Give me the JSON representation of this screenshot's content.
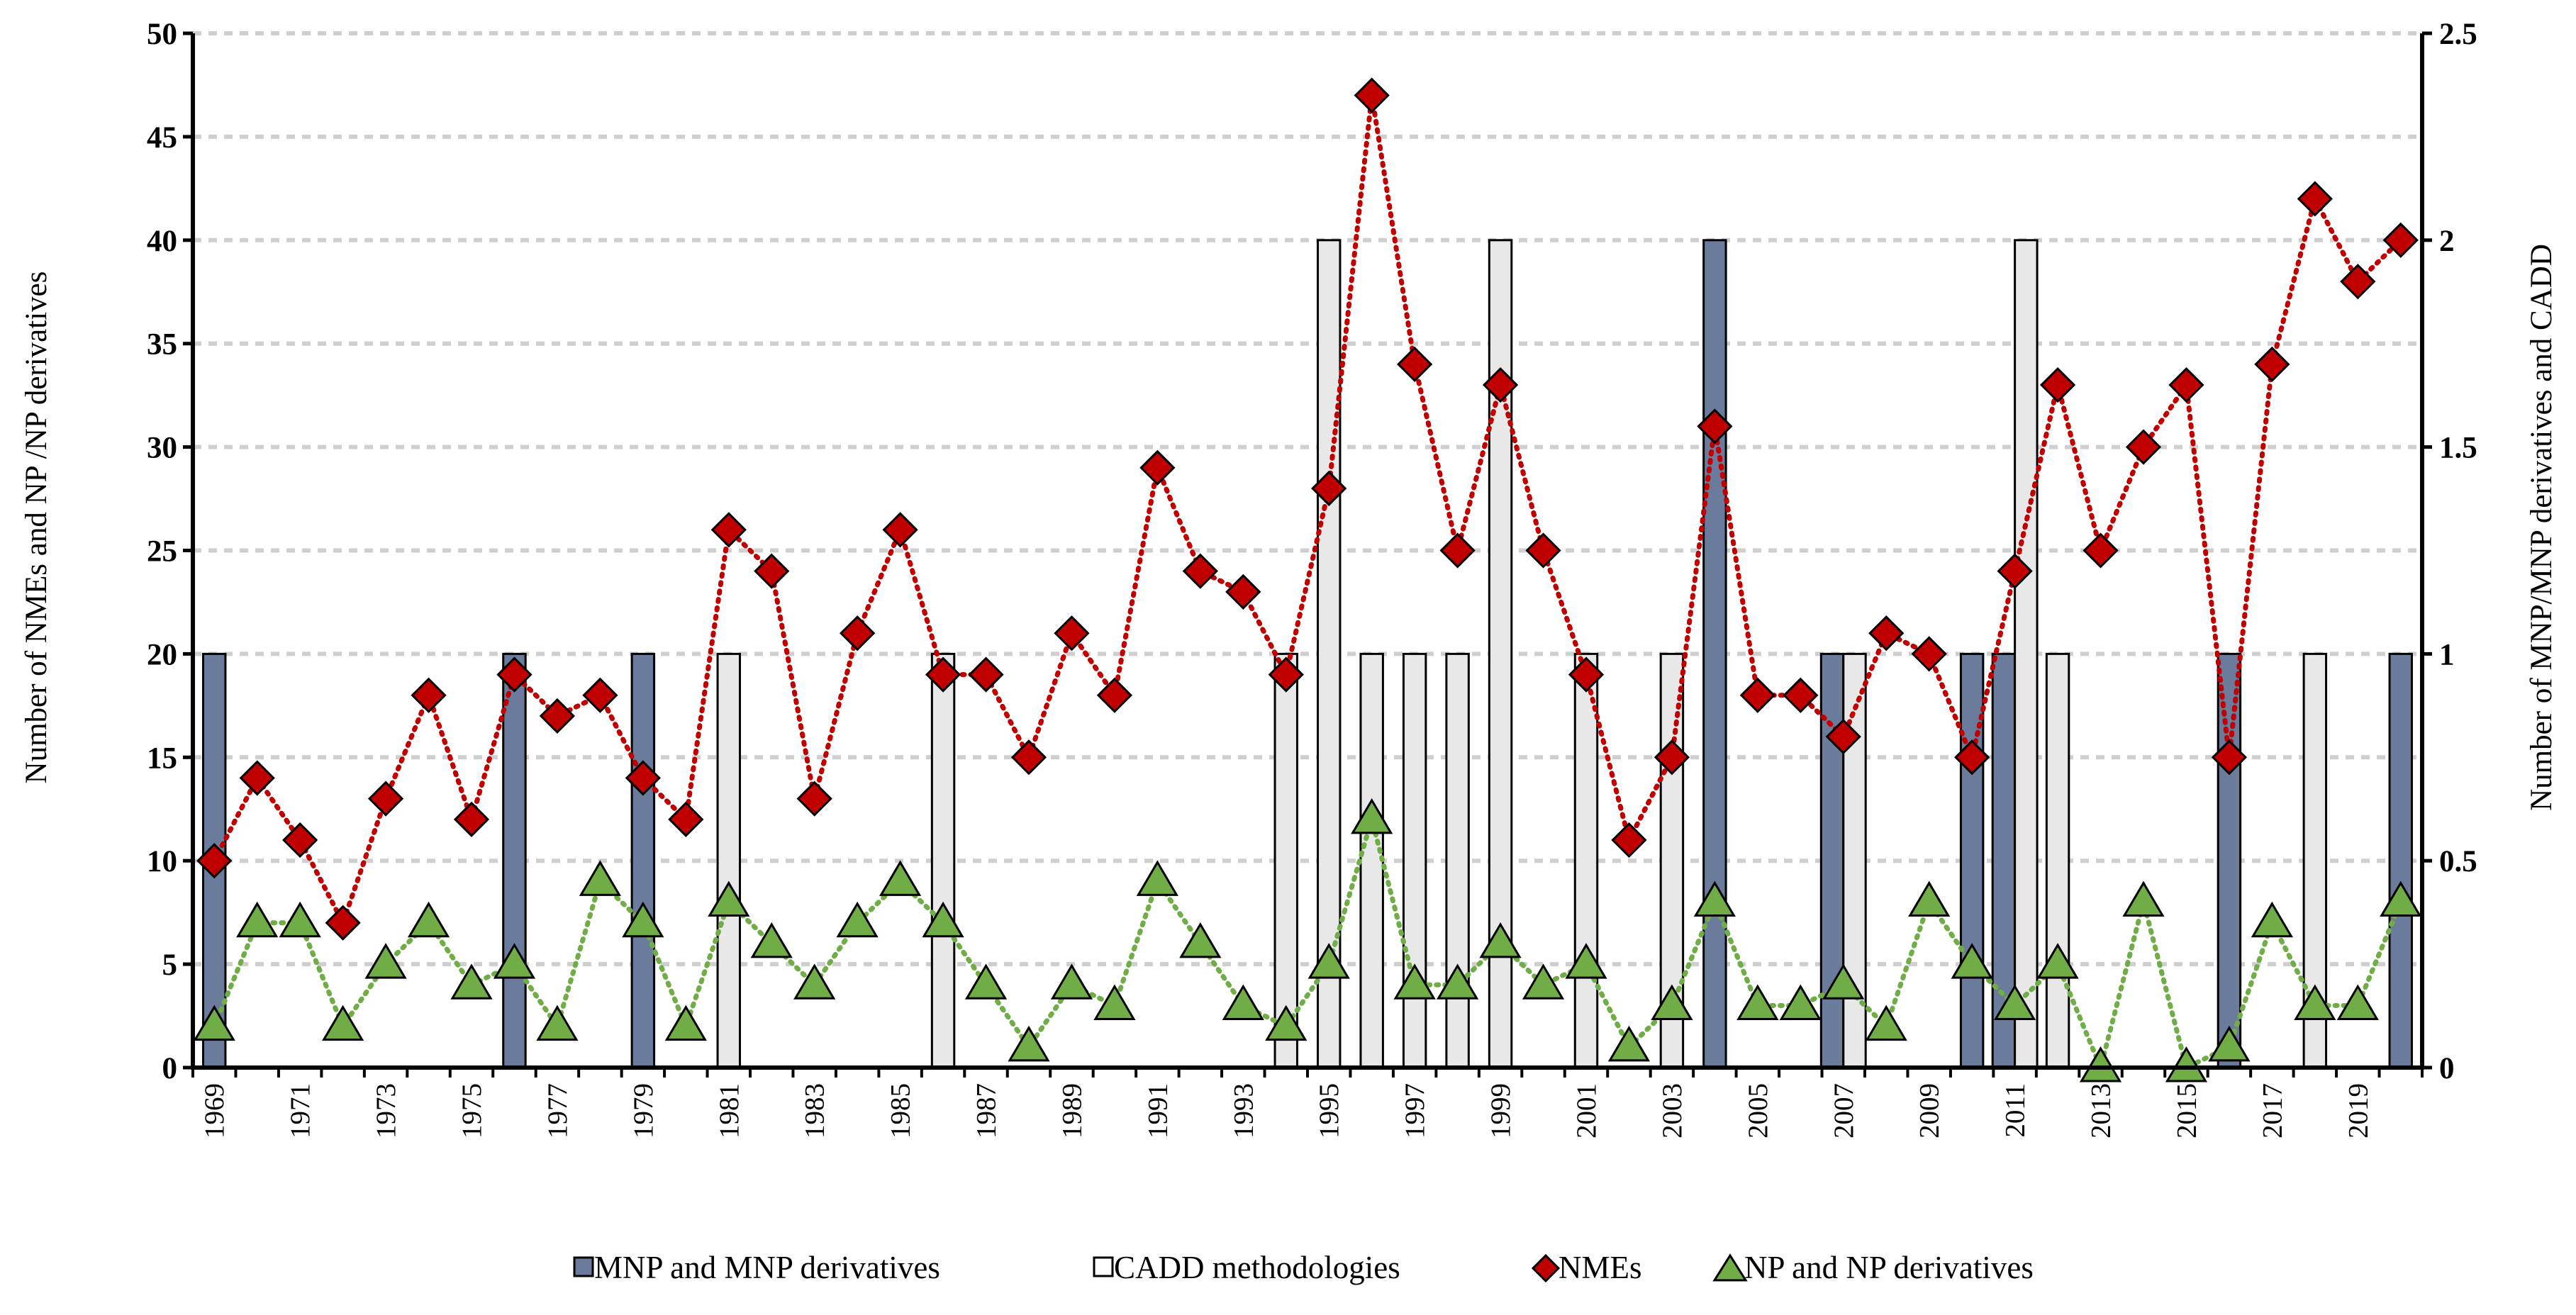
{
  "chart_data": {
    "type": "bar",
    "title": "",
    "xlabel": "",
    "ylabel": "Number of NMEs and NP /NP derivatives",
    "y2label": "Number of MNP/MNP derivatives and CADD",
    "ylim": [
      0,
      50
    ],
    "y2lim": [
      0,
      2.5
    ],
    "yticks": [
      "0",
      "5",
      "10",
      "15",
      "20",
      "25",
      "30",
      "35",
      "40",
      "45",
      "50"
    ],
    "y2ticks": [
      "0",
      "0.5",
      "1",
      "1.5",
      "2",
      "2.5"
    ],
    "grid": true,
    "legend_position": "bottom",
    "categories": [
      "1969",
      "1970",
      "1971",
      "1972",
      "1973",
      "1974",
      "1975",
      "1976",
      "1977",
      "1978",
      "1979",
      "1980",
      "1981",
      "1982",
      "1983",
      "1984",
      "1985",
      "1986",
      "1987",
      "1988",
      "1989",
      "1990",
      "1991",
      "1992",
      "1993",
      "1994",
      "1995",
      "1996",
      "1997",
      "1998",
      "1999",
      "2000",
      "2001",
      "2002",
      "2003",
      "2004",
      "2005",
      "2006",
      "2007",
      "2008",
      "2009",
      "2010",
      "2011",
      "2012",
      "2013",
      "2014",
      "2015",
      "2016",
      "2017",
      "2018",
      "2019",
      "2020"
    ],
    "x_tick_labels": [
      "1969",
      "1971",
      "1973",
      "1975",
      "1977",
      "1979",
      "1981",
      "1983",
      "1985",
      "1987",
      "1989",
      "1991",
      "1993",
      "1995",
      "1997",
      "1999",
      "2001",
      "2003",
      "2005",
      "2007",
      "2009",
      "2011",
      "2013",
      "2015",
      "2017",
      "2019"
    ],
    "series": [
      {
        "name": "MNP and MNP derivatives",
        "type": "bar",
        "axis": "right",
        "color": "#6b7b9c",
        "values": [
          1,
          0,
          0,
          0,
          0,
          0,
          0,
          1,
          0,
          0,
          1,
          0,
          0,
          0,
          0,
          0,
          0,
          0,
          0,
          0,
          0,
          0,
          0,
          0,
          0,
          0,
          0,
          0,
          0,
          0,
          0,
          0,
          0,
          0,
          0,
          2,
          0,
          0,
          1,
          0,
          0,
          1,
          1,
          0,
          0,
          0,
          0,
          1,
          0,
          0,
          0,
          1
        ]
      },
      {
        "name": "CADD methodologies",
        "type": "bar",
        "axis": "right",
        "color": "#e8e8e8",
        "values": [
          0,
          0,
          0,
          0,
          0,
          0,
          0,
          0,
          0,
          0,
          0,
          0,
          1,
          0,
          0,
          0,
          0,
          1,
          0,
          0,
          0,
          0,
          0,
          0,
          0,
          1,
          2,
          1,
          1,
          1,
          2,
          0,
          1,
          0,
          1,
          0,
          0,
          0,
          1,
          0,
          0,
          0,
          2,
          1,
          0,
          0,
          0,
          0,
          0,
          1,
          0,
          0
        ]
      },
      {
        "name": "NMEs",
        "type": "line",
        "axis": "left",
        "color": "#c00000",
        "values": [
          10,
          14,
          11,
          7,
          13,
          18,
          12,
          19,
          17,
          18,
          14,
          12,
          26,
          24,
          13,
          21,
          26,
          19,
          19,
          15,
          21,
          18,
          29,
          24,
          23,
          19,
          28,
          47,
          34,
          25,
          33,
          25,
          19,
          11,
          15,
          31,
          18,
          18,
          16,
          21,
          20,
          15,
          24,
          33,
          25,
          30,
          33,
          15,
          34,
          42,
          38,
          40
        ]
      },
      {
        "name": "NP and NP derivatives",
        "type": "line",
        "axis": "left",
        "color": "#70ad47",
        "values": [
          2,
          7,
          7,
          2,
          5,
          7,
          4,
          5,
          2,
          9,
          7,
          2,
          8,
          6,
          4,
          7,
          9,
          7,
          4,
          1,
          4,
          3,
          9,
          6,
          3,
          2,
          5,
          12,
          4,
          4,
          6,
          4,
          5,
          1,
          3,
          8,
          3,
          3,
          4,
          2,
          8,
          5,
          3,
          5,
          0,
          8,
          0,
          1,
          7,
          3,
          3,
          8
        ]
      }
    ]
  }
}
